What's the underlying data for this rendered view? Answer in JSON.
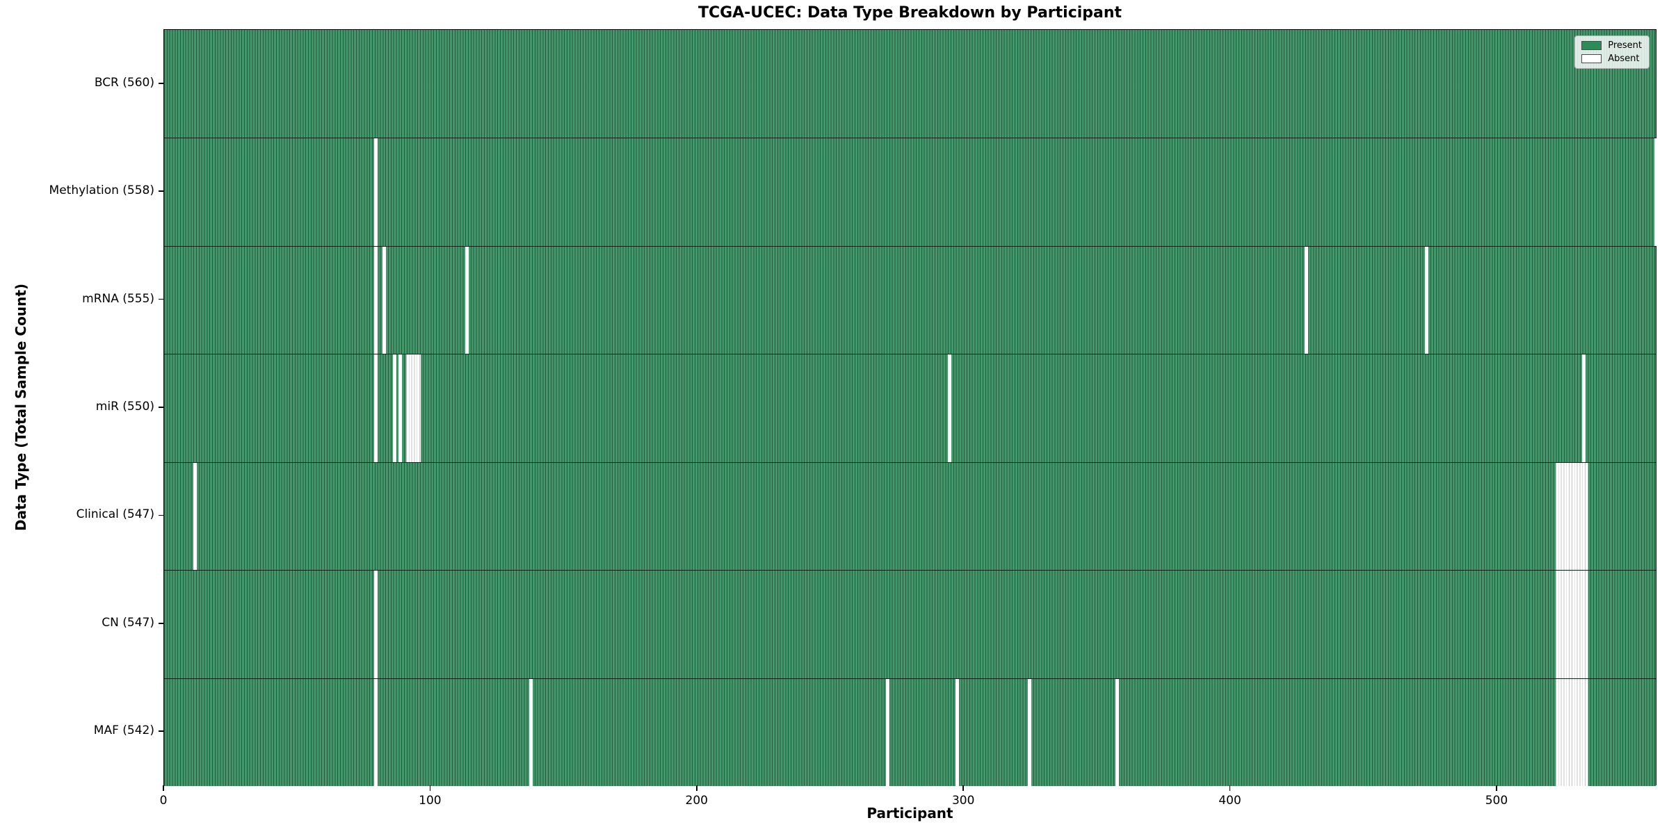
{
  "chart_data": {
    "type": "heatmap",
    "title": "TCGA-UCEC: Data Type Breakdown by Participant",
    "xlabel": "Participant",
    "ylabel": "Data Type (Total Sample Count)",
    "x_ticks": [
      0,
      100,
      200,
      300,
      400,
      500
    ],
    "x_range": [
      0,
      560
    ],
    "n_participants": 560,
    "grid": false,
    "legend_position": "upper right",
    "legend": [
      {
        "label": "Present",
        "color": "#2e8b57"
      },
      {
        "label": "Absent",
        "color": "#ffffff"
      }
    ],
    "present_color": "#2e8b57",
    "absent_color": "#ffffff",
    "rows": [
      {
        "label": "BCR (560)",
        "data_type": "BCR",
        "total": 560,
        "absent_runs": []
      },
      {
        "label": "Methylation (558)",
        "data_type": "Methylation",
        "total": 558,
        "absent_runs": [
          [
            79,
            1
          ],
          [
            559,
            1
          ]
        ]
      },
      {
        "label": "mRNA (555)",
        "data_type": "mRNA",
        "total": 555,
        "absent_runs": [
          [
            79,
            1
          ],
          [
            82,
            1
          ],
          [
            113,
            1
          ],
          [
            428,
            1
          ],
          [
            473,
            1
          ]
        ]
      },
      {
        "label": "miR (550)",
        "data_type": "miR",
        "total": 550,
        "absent_runs": [
          [
            79,
            1
          ],
          [
            86,
            1
          ],
          [
            88,
            1
          ],
          [
            91,
            5
          ],
          [
            294,
            1
          ],
          [
            532,
            1
          ]
        ]
      },
      {
        "label": "Clinical (547)",
        "data_type": "Clinical",
        "total": 547,
        "absent_runs": [
          [
            11,
            1
          ],
          [
            522,
            12
          ]
        ]
      },
      {
        "label": "CN (547)",
        "data_type": "CN",
        "total": 547,
        "absent_runs": [
          [
            79,
            1
          ],
          [
            522,
            12
          ]
        ]
      },
      {
        "label": "MAF (542)",
        "data_type": "MAF",
        "total": 542,
        "absent_runs": [
          [
            79,
            1
          ],
          [
            137,
            1
          ],
          [
            271,
            1
          ],
          [
            297,
            1
          ],
          [
            324,
            1
          ],
          [
            357,
            1
          ],
          [
            522,
            12
          ]
        ]
      }
    ]
  }
}
